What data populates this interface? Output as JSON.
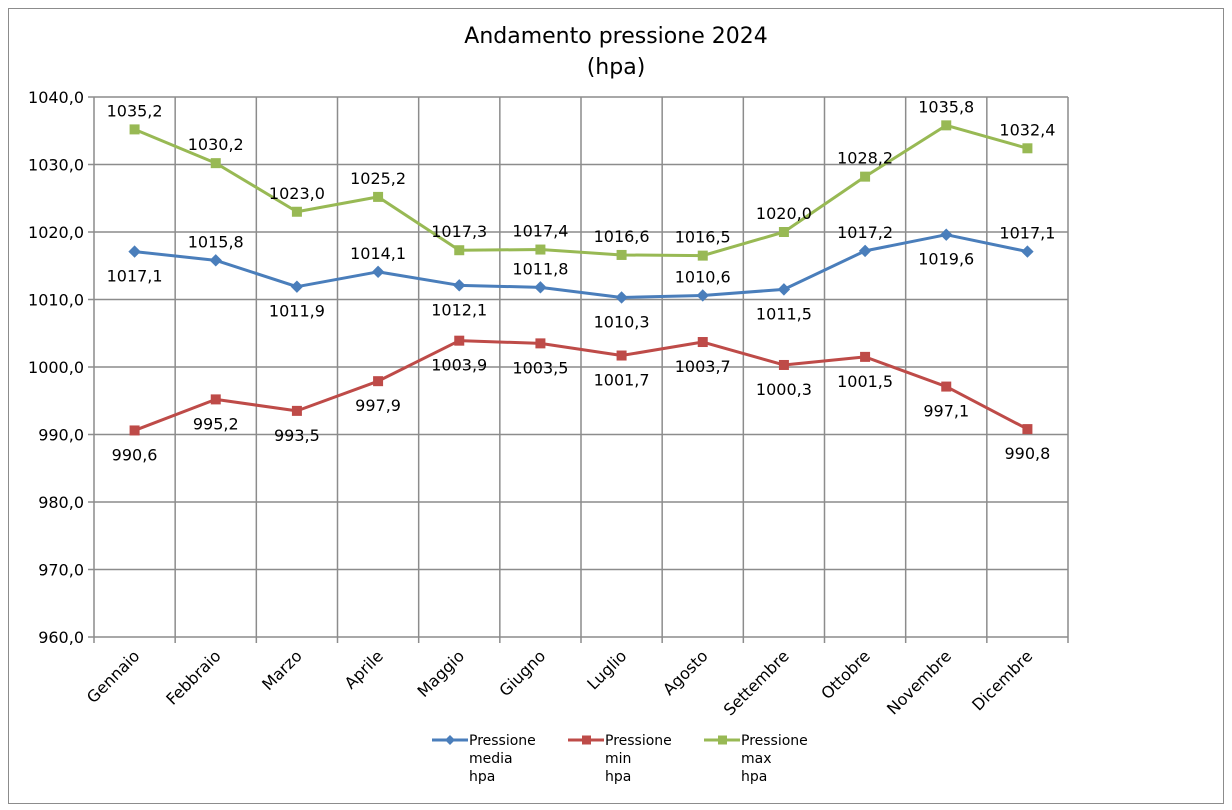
{
  "chart_data": {
    "type": "line",
    "title": "Andamento pressione 2024",
    "subtitle": "(hpa)",
    "xlabel": "",
    "ylabel": "",
    "ylim": [
      960,
      1040
    ],
    "ytick_step": 10,
    "ytick_labels": [
      "960,0",
      "970,0",
      "980,0",
      "990,0",
      "1000,0",
      "1010,0",
      "1020,0",
      "1030,0",
      "1040,0"
    ],
    "grid": true,
    "legend_position": "bottom",
    "categories": [
      "Gennaio",
      "Febbraio",
      "Marzo",
      "Aprile",
      "Maggio",
      "Giugno",
      "Luglio",
      "Agosto",
      "Settembre",
      "Ottobre",
      "Novembre",
      "Dicembre"
    ],
    "series": [
      {
        "name": "Pressione media hpa",
        "legend_lines": [
          "Pressione",
          "media",
          "hpa"
        ],
        "color": "#4a7ebb",
        "marker": "diamond",
        "values": [
          1017.1,
          1015.8,
          1011.9,
          1014.1,
          1012.1,
          1011.8,
          1010.3,
          1010.6,
          1011.5,
          1017.2,
          1019.6,
          1017.1
        ],
        "labels": [
          "1017,1",
          "1015,8",
          "1011,9",
          "1014,1",
          "1012,1",
          "1011,8",
          "1010,3",
          "1010,6",
          "1011,5",
          "1017,2",
          "1019,6",
          "1017,1"
        ]
      },
      {
        "name": "Pressione min hpa",
        "legend_lines": [
          "Pressione",
          "min",
          "hpa"
        ],
        "color": "#be4b48",
        "marker": "square",
        "values": [
          990.6,
          995.2,
          993.5,
          997.9,
          1003.9,
          1003.5,
          1001.7,
          1003.7,
          1000.3,
          1001.5,
          997.1,
          990.8
        ],
        "labels": [
          "990,6",
          "995,2",
          "993,5",
          "997,9",
          "1003,9",
          "1003,5",
          "1001,7",
          "1003,7",
          "1000,3",
          "1001,5",
          "997,1",
          "990,8"
        ]
      },
      {
        "name": "Pressione max hpa",
        "legend_lines": [
          "Pressione",
          "max",
          "hpa"
        ],
        "color": "#98b954",
        "marker": "square",
        "values": [
          1035.2,
          1030.2,
          1023.0,
          1025.2,
          1017.3,
          1017.4,
          1016.6,
          1016.5,
          1020.0,
          1028.2,
          1035.8,
          1032.4
        ],
        "labels": [
          "1035,2",
          "1030,2",
          "1023,0",
          "1025,2",
          "1017,3",
          "1017,4",
          "1016,6",
          "1016,5",
          "1020,0",
          "1028,2",
          "1035,8",
          "1032,4"
        ]
      }
    ]
  }
}
